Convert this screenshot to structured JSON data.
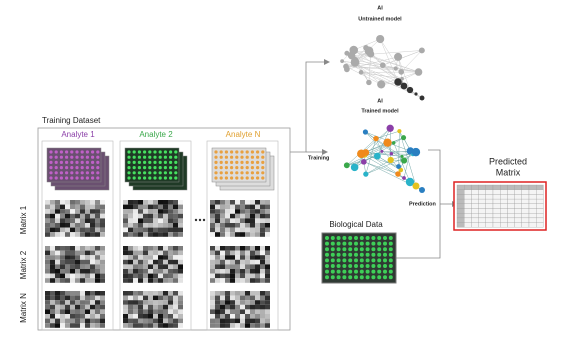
{
  "untrained_model": {
    "title": "AI",
    "subtitle": "Untrained model"
  },
  "trained_model": {
    "title": "AI",
    "subtitle": "Trained model"
  },
  "training_dataset": {
    "title": "Training Dataset",
    "columns": [
      "Analyte 1",
      "Analyte 2",
      "Analyte N"
    ],
    "rows": [
      "Matrix 1",
      "Matrix 2",
      "Matrix N"
    ]
  },
  "arrows": {
    "training": "Training",
    "prediction": "Prediction"
  },
  "biological_data": {
    "title": "Biological Data"
  },
  "predicted_matrix": {
    "title_lines": [
      "Predicted",
      "Matrix"
    ]
  }
}
